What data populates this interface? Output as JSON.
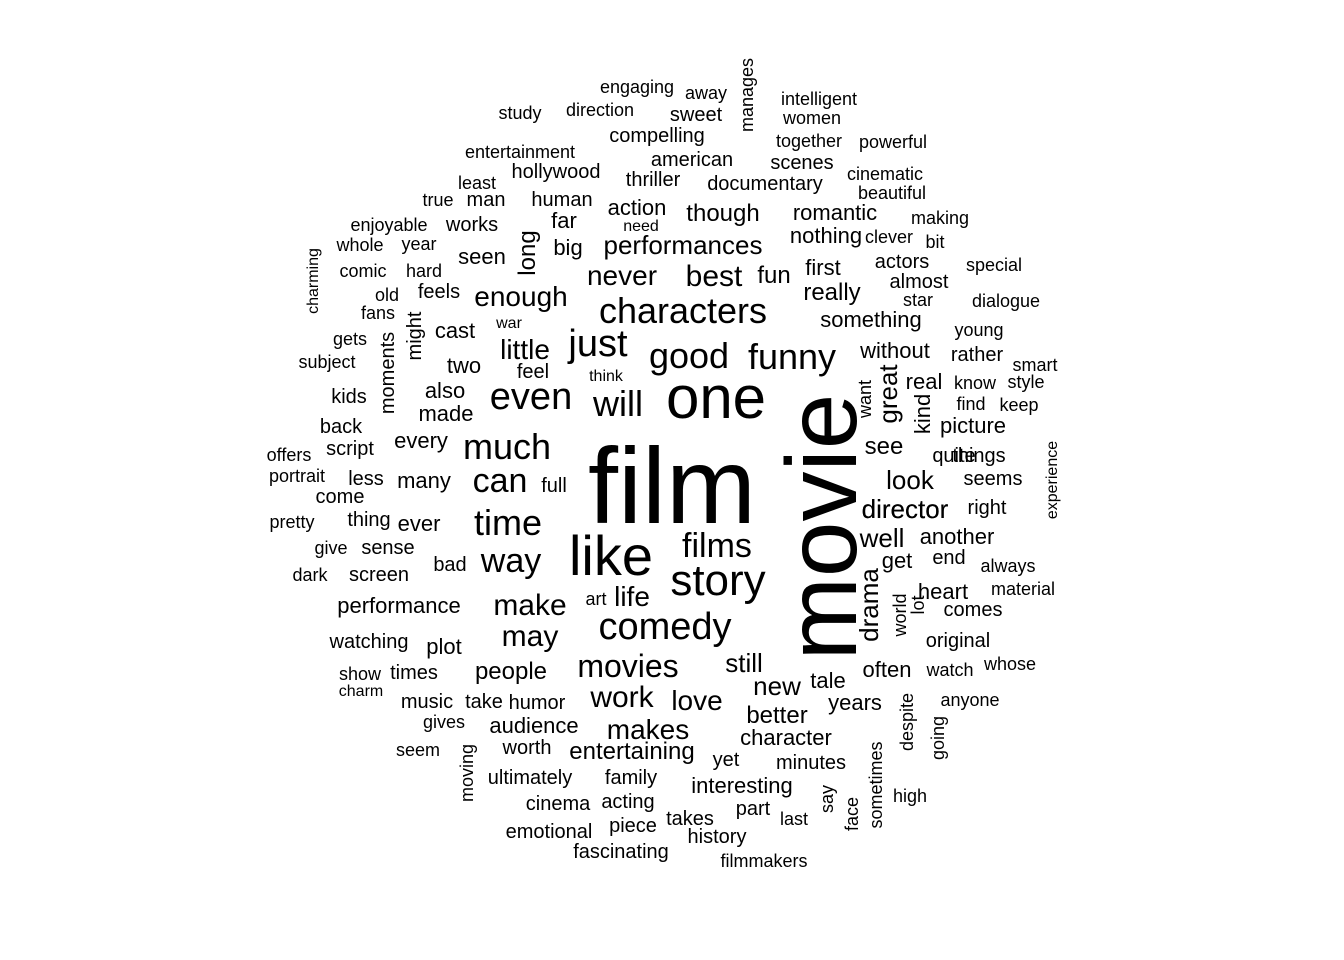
{
  "words": [
    "film",
    "movie",
    "one",
    "like",
    "story",
    "comedy",
    "characters",
    "good",
    "just",
    "even",
    "funny",
    "much",
    "time",
    "films",
    "will",
    "can",
    "way",
    "movies",
    "make",
    "best",
    "never",
    "performances",
    "enough",
    "little",
    "may",
    "director",
    "work",
    "makes",
    "love",
    "life",
    "still",
    "new",
    "look",
    "drama",
    "great",
    "well",
    "see",
    "entertaining",
    "performance",
    "people",
    "audience",
    "character",
    "better",
    "years",
    "plot",
    "tale",
    "often",
    "heart",
    "get",
    "director",
    "kind",
    "picture",
    "real",
    "without",
    "something",
    "really",
    "first",
    "fun",
    "nothing",
    "romantic",
    "though",
    "documentary",
    "thriller",
    "american",
    "compelling",
    "action",
    "human",
    "far",
    "big",
    "seen",
    "long",
    "two",
    "also",
    "made",
    "every",
    "many",
    "less",
    "ever",
    "bad",
    "full",
    "sense",
    "screen",
    "thing",
    "cast",
    "feels",
    "feel",
    "might",
    "moments",
    "kids",
    "back",
    "script",
    "come",
    "give",
    "dark",
    "offers",
    "portrait",
    "pretty",
    "subject",
    "gets",
    "fans",
    "old",
    "comic",
    "hard",
    "whole",
    "year",
    "enjoyable",
    "works",
    "true",
    "man",
    "least",
    "hollywood",
    "entertainment",
    "study",
    "direction",
    "engaging",
    "away",
    "sweet",
    "manages",
    "intelligent",
    "women",
    "together",
    "powerful",
    "scenes",
    "cinematic",
    "beautiful",
    "making",
    "clever",
    "bit",
    "actors",
    "special",
    "almost",
    "star",
    "dialogue",
    "young",
    "rather",
    "smart",
    "style",
    "know",
    "keep",
    "find",
    "things",
    "quite",
    "seems",
    "right",
    "always",
    "end",
    "another",
    "material",
    "comes",
    "original",
    "whose",
    "watch",
    "anyone",
    "despite",
    "going",
    "high",
    "sometimes",
    "say",
    "face",
    "last",
    "part",
    "minutes",
    "yet",
    "interesting",
    "acting",
    "piece",
    "history",
    "takes",
    "filmmakers",
    "fascinating",
    "emotional",
    "cinema",
    "moving",
    "ultimately",
    "worth",
    "family",
    "gives",
    "seem",
    "charm",
    "show",
    "times",
    "music",
    "take",
    "humor",
    "watching",
    "art",
    "lot",
    "world",
    "want",
    "think",
    "war",
    "need",
    "charming",
    "experience"
  ]
}
